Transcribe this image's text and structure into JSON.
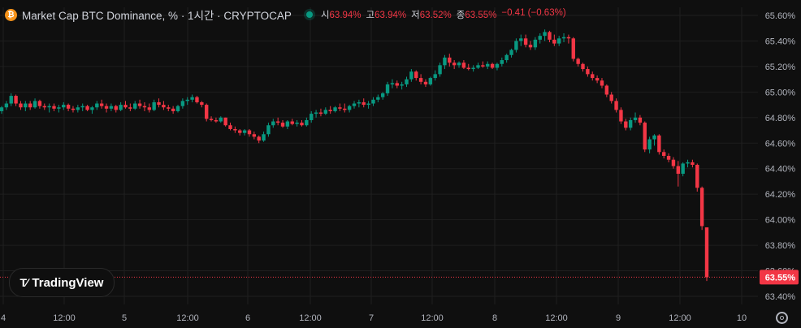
{
  "header": {
    "btc_icon": "bitcoin-icon",
    "title": "Market Cap BTC Dominance, % · 1시간 · CRYPTOCAP",
    "open_label": "시",
    "open_value": "63.94%",
    "high_label": "고",
    "high_value": "63.94%",
    "low_label": "저",
    "low_value": "63.52%",
    "close_label": "종",
    "close_value": "63.55%",
    "change": "−0.41 (−0.63%)"
  },
  "logo": {
    "text": "TradingView",
    "icon": "tradingview-logo-icon"
  },
  "settings_icon": "gear-icon",
  "colors": {
    "up": "#089981",
    "down": "#f23645",
    "background": "#0f0f0f",
    "grid": "#1f1f1f",
    "axis_text": "#b2b5be"
  },
  "chart_data": {
    "type": "candlestick",
    "title": "Market Cap BTC Dominance, %",
    "interval": "1시간",
    "ylim": [
      63.4,
      65.6
    ],
    "y_ticks": [
      65.6,
      65.4,
      65.2,
      65.0,
      64.8,
      64.6,
      64.4,
      64.2,
      64.0,
      63.8,
      63.6,
      63.4
    ],
    "y_tick_labels": [
      "65.60%",
      "65.40%",
      "65.20%",
      "65.00%",
      "64.80%",
      "64.60%",
      "64.40%",
      "64.20%",
      "64.00%",
      "63.80%",
      "63.60%",
      "63.40%"
    ],
    "x_tick_labels": [
      "4",
      "12:00",
      "5",
      "12:00",
      "6",
      "12:00",
      "7",
      "12:00",
      "8",
      "12:00",
      "9",
      "12:00",
      "10"
    ],
    "last_price": 63.55,
    "last_price_label": "63.55%",
    "candles": [
      [
        64.85,
        64.89,
        64.83,
        64.88
      ],
      [
        64.88,
        64.93,
        64.86,
        64.91
      ],
      [
        64.91,
        64.99,
        64.89,
        64.97
      ],
      [
        64.97,
        64.98,
        64.89,
        64.91
      ],
      [
        64.91,
        64.93,
        64.86,
        64.88
      ],
      [
        64.88,
        64.93,
        64.85,
        64.91
      ],
      [
        64.91,
        64.93,
        64.86,
        64.88
      ],
      [
        64.88,
        64.95,
        64.87,
        64.93
      ],
      [
        64.93,
        64.94,
        64.87,
        64.89
      ],
      [
        64.89,
        64.91,
        64.86,
        64.88
      ],
      [
        64.88,
        64.91,
        64.84,
        64.89
      ],
      [
        64.89,
        64.91,
        64.85,
        64.87
      ],
      [
        64.87,
        64.9,
        64.84,
        64.88
      ],
      [
        64.88,
        64.92,
        64.86,
        64.9
      ],
      [
        64.9,
        64.91,
        64.85,
        64.87
      ],
      [
        64.87,
        64.89,
        64.84,
        64.86
      ],
      [
        64.86,
        64.9,
        64.84,
        64.88
      ],
      [
        64.88,
        64.91,
        64.85,
        64.89
      ],
      [
        64.89,
        64.9,
        64.85,
        64.86
      ],
      [
        64.86,
        64.89,
        64.83,
        64.88
      ],
      [
        64.88,
        64.93,
        64.86,
        64.91
      ],
      [
        64.91,
        64.94,
        64.87,
        64.89
      ],
      [
        64.89,
        64.91,
        64.84,
        64.87
      ],
      [
        64.87,
        64.91,
        64.85,
        64.89
      ],
      [
        64.89,
        64.9,
        64.84,
        64.86
      ],
      [
        64.86,
        64.92,
        64.85,
        64.9
      ],
      [
        64.9,
        64.93,
        64.87,
        64.88
      ],
      [
        64.88,
        64.91,
        64.85,
        64.87
      ],
      [
        64.87,
        64.93,
        64.86,
        64.91
      ],
      [
        64.91,
        64.94,
        64.87,
        64.89
      ],
      [
        64.89,
        64.92,
        64.85,
        64.88
      ],
      [
        64.88,
        64.91,
        64.84,
        64.86
      ],
      [
        64.86,
        64.94,
        64.85,
        64.92
      ],
      [
        64.92,
        64.95,
        64.88,
        64.9
      ],
      [
        64.9,
        64.93,
        64.86,
        64.88
      ],
      [
        64.88,
        64.9,
        64.85,
        64.87
      ],
      [
        64.87,
        64.89,
        64.83,
        64.85
      ],
      [
        64.85,
        64.9,
        64.84,
        64.89
      ],
      [
        64.89,
        64.95,
        64.87,
        64.93
      ],
      [
        64.93,
        64.96,
        64.9,
        64.94
      ],
      [
        64.94,
        64.98,
        64.92,
        64.96
      ],
      [
        64.96,
        64.97,
        64.91,
        64.92
      ],
      [
        64.92,
        64.93,
        64.88,
        64.9
      ],
      [
        64.9,
        64.91,
        64.77,
        64.79
      ],
      [
        64.79,
        64.81,
        64.77,
        64.78
      ],
      [
        64.78,
        64.8,
        64.76,
        64.77
      ],
      [
        64.77,
        64.81,
        64.76,
        64.8
      ],
      [
        64.8,
        64.8,
        64.73,
        64.74
      ],
      [
        64.74,
        64.76,
        64.7,
        64.71
      ],
      [
        64.71,
        64.73,
        64.68,
        64.7
      ],
      [
        64.7,
        64.71,
        64.66,
        64.68
      ],
      [
        64.68,
        64.71,
        64.66,
        64.7
      ],
      [
        64.7,
        64.71,
        64.65,
        64.67
      ],
      [
        64.67,
        64.69,
        64.63,
        64.65
      ],
      [
        64.65,
        64.66,
        64.6,
        64.62
      ],
      [
        64.62,
        64.69,
        64.61,
        64.67
      ],
      [
        64.67,
        64.76,
        64.65,
        64.74
      ],
      [
        64.74,
        64.79,
        64.72,
        64.77
      ],
      [
        64.77,
        64.8,
        64.74,
        64.76
      ],
      [
        64.76,
        64.78,
        64.72,
        64.73
      ],
      [
        64.73,
        64.78,
        64.71,
        64.77
      ],
      [
        64.77,
        64.79,
        64.74,
        64.75
      ],
      [
        64.75,
        64.78,
        64.73,
        64.76
      ],
      [
        64.76,
        64.78,
        64.73,
        64.74
      ],
      [
        64.74,
        64.8,
        64.73,
        64.78
      ],
      [
        64.78,
        64.85,
        64.76,
        64.83
      ],
      [
        64.83,
        64.86,
        64.8,
        64.84
      ],
      [
        64.84,
        64.87,
        64.81,
        64.83
      ],
      [
        64.83,
        64.88,
        64.82,
        64.86
      ],
      [
        64.86,
        64.89,
        64.83,
        64.85
      ],
      [
        64.85,
        64.89,
        64.84,
        64.88
      ],
      [
        64.88,
        64.91,
        64.85,
        64.87
      ],
      [
        64.87,
        64.91,
        64.84,
        64.86
      ],
      [
        64.86,
        64.9,
        64.84,
        64.89
      ],
      [
        64.89,
        64.93,
        64.87,
        64.91
      ],
      [
        64.91,
        64.94,
        64.88,
        64.92
      ],
      [
        64.92,
        64.95,
        64.88,
        64.9
      ],
      [
        64.9,
        64.93,
        64.87,
        64.91
      ],
      [
        64.91,
        64.96,
        64.89,
        64.94
      ],
      [
        64.94,
        64.98,
        64.92,
        64.96
      ],
      [
        64.96,
        65.0,
        64.94,
        64.99
      ],
      [
        64.99,
        65.08,
        64.97,
        65.06
      ],
      [
        65.06,
        65.1,
        65.03,
        65.07
      ],
      [
        65.07,
        65.09,
        65.03,
        65.05
      ],
      [
        65.05,
        65.08,
        65.02,
        65.06
      ],
      [
        65.06,
        65.12,
        65.04,
        65.1
      ],
      [
        65.1,
        65.18,
        65.08,
        65.16
      ],
      [
        65.16,
        65.17,
        65.09,
        65.11
      ],
      [
        65.11,
        65.14,
        65.06,
        65.08
      ],
      [
        65.08,
        65.1,
        65.04,
        65.06
      ],
      [
        65.06,
        65.12,
        65.05,
        65.11
      ],
      [
        65.11,
        65.17,
        65.09,
        65.14
      ],
      [
        65.14,
        65.23,
        65.12,
        65.21
      ],
      [
        65.21,
        65.29,
        65.18,
        65.27
      ],
      [
        65.27,
        65.3,
        65.2,
        65.23
      ],
      [
        65.23,
        65.25,
        65.18,
        65.21
      ],
      [
        65.21,
        65.24,
        65.19,
        65.23
      ],
      [
        65.23,
        65.25,
        65.18,
        65.19
      ],
      [
        65.19,
        65.22,
        65.17,
        65.18
      ],
      [
        65.18,
        65.21,
        65.16,
        65.19
      ],
      [
        65.19,
        65.23,
        65.18,
        65.21
      ],
      [
        65.21,
        65.24,
        65.19,
        65.2
      ],
      [
        65.2,
        65.24,
        65.18,
        65.22
      ],
      [
        65.22,
        65.23,
        65.18,
        65.19
      ],
      [
        65.19,
        65.23,
        65.17,
        65.22
      ],
      [
        65.22,
        65.27,
        65.2,
        65.25
      ],
      [
        65.25,
        65.3,
        65.23,
        65.29
      ],
      [
        65.29,
        65.34,
        65.27,
        65.33
      ],
      [
        65.33,
        65.42,
        65.31,
        65.4
      ],
      [
        65.4,
        65.45,
        65.36,
        65.42
      ],
      [
        65.42,
        65.45,
        65.35,
        65.37
      ],
      [
        65.37,
        65.4,
        65.33,
        65.35
      ],
      [
        65.35,
        65.43,
        65.33,
        65.41
      ],
      [
        65.41,
        65.46,
        65.38,
        65.44
      ],
      [
        65.44,
        65.49,
        65.4,
        65.47
      ],
      [
        65.47,
        65.48,
        65.39,
        65.41
      ],
      [
        65.41,
        65.45,
        65.36,
        65.38
      ],
      [
        65.38,
        65.44,
        65.36,
        65.42
      ],
      [
        65.42,
        65.46,
        65.39,
        65.43
      ],
      [
        65.43,
        65.45,
        65.38,
        65.42
      ],
      [
        65.42,
        65.43,
        65.24,
        65.26
      ],
      [
        65.26,
        65.27,
        65.2,
        65.22
      ],
      [
        65.22,
        65.23,
        65.16,
        65.18
      ],
      [
        65.18,
        65.2,
        65.12,
        65.14
      ],
      [
        65.14,
        65.16,
        65.09,
        65.11
      ],
      [
        65.11,
        65.13,
        65.07,
        65.09
      ],
      [
        65.09,
        65.11,
        65.03,
        65.05
      ],
      [
        65.05,
        65.06,
        64.96,
        64.98
      ],
      [
        64.98,
        65.0,
        64.91,
        64.93
      ],
      [
        64.93,
        64.95,
        64.84,
        64.86
      ],
      [
        64.86,
        64.88,
        64.75,
        64.77
      ],
      [
        64.77,
        64.79,
        64.7,
        64.72
      ],
      [
        64.72,
        64.8,
        64.7,
        64.78
      ],
      [
        64.78,
        64.84,
        64.76,
        64.8
      ],
      [
        64.8,
        64.82,
        64.74,
        64.76
      ],
      [
        64.76,
        64.77,
        64.53,
        64.55
      ],
      [
        64.55,
        64.65,
        64.52,
        64.63
      ],
      [
        64.63,
        64.67,
        64.58,
        64.66
      ],
      [
        64.66,
        64.67,
        64.51,
        64.53
      ],
      [
        64.53,
        64.55,
        64.48,
        64.5
      ],
      [
        64.5,
        64.52,
        64.45,
        64.47
      ],
      [
        64.47,
        64.49,
        64.4,
        64.42
      ],
      [
        64.42,
        64.46,
        64.26,
        64.36
      ],
      [
        64.36,
        64.45,
        64.34,
        64.44
      ],
      [
        64.44,
        64.47,
        64.41,
        64.45
      ],
      [
        64.45,
        64.47,
        64.41,
        64.43
      ],
      [
        64.43,
        64.44,
        64.22,
        64.25
      ],
      [
        64.25,
        64.26,
        63.92,
        63.95
      ],
      [
        63.94,
        63.94,
        63.52,
        63.55
      ]
    ]
  }
}
